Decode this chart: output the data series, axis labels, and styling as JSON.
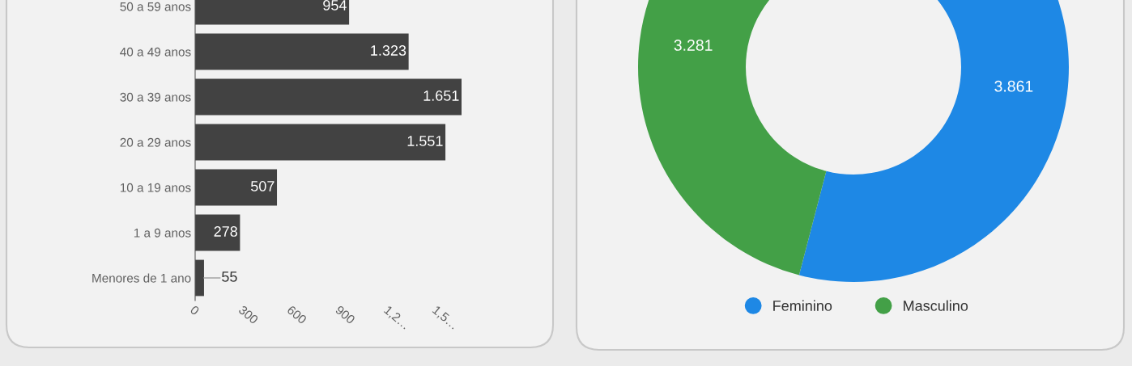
{
  "chart_data": [
    {
      "type": "bar",
      "orientation": "horizontal",
      "categories": [
        "50 a 59 anos",
        "40 a 49 anos",
        "30 a 39 anos",
        "20 a 29 anos",
        "10 a 19 anos",
        "1 a 9 anos",
        "Menores de 1 ano"
      ],
      "values": [
        954,
        1323,
        1651,
        1551,
        507,
        278,
        55
      ],
      "value_labels": [
        "954",
        "1.323",
        "1.651",
        "1.551",
        "507",
        "278",
        "55"
      ],
      "color": "#424242",
      "xlim": [
        0,
        1651
      ],
      "xticks": [
        0,
        300,
        600,
        900,
        {
          "value": 1200,
          "label": "1,2…"
        },
        {
          "value": 1500,
          "label": "1,5…"
        }
      ],
      "grid": false
    },
    {
      "type": "donut",
      "categories": [
        "Feminino",
        "Masculino"
      ],
      "values": [
        3861,
        3281
      ],
      "colors": [
        "#1e88e5",
        "#43a047"
      ],
      "value_labels": [
        "3.861",
        "3.281"
      ],
      "legend": "bottom"
    }
  ]
}
